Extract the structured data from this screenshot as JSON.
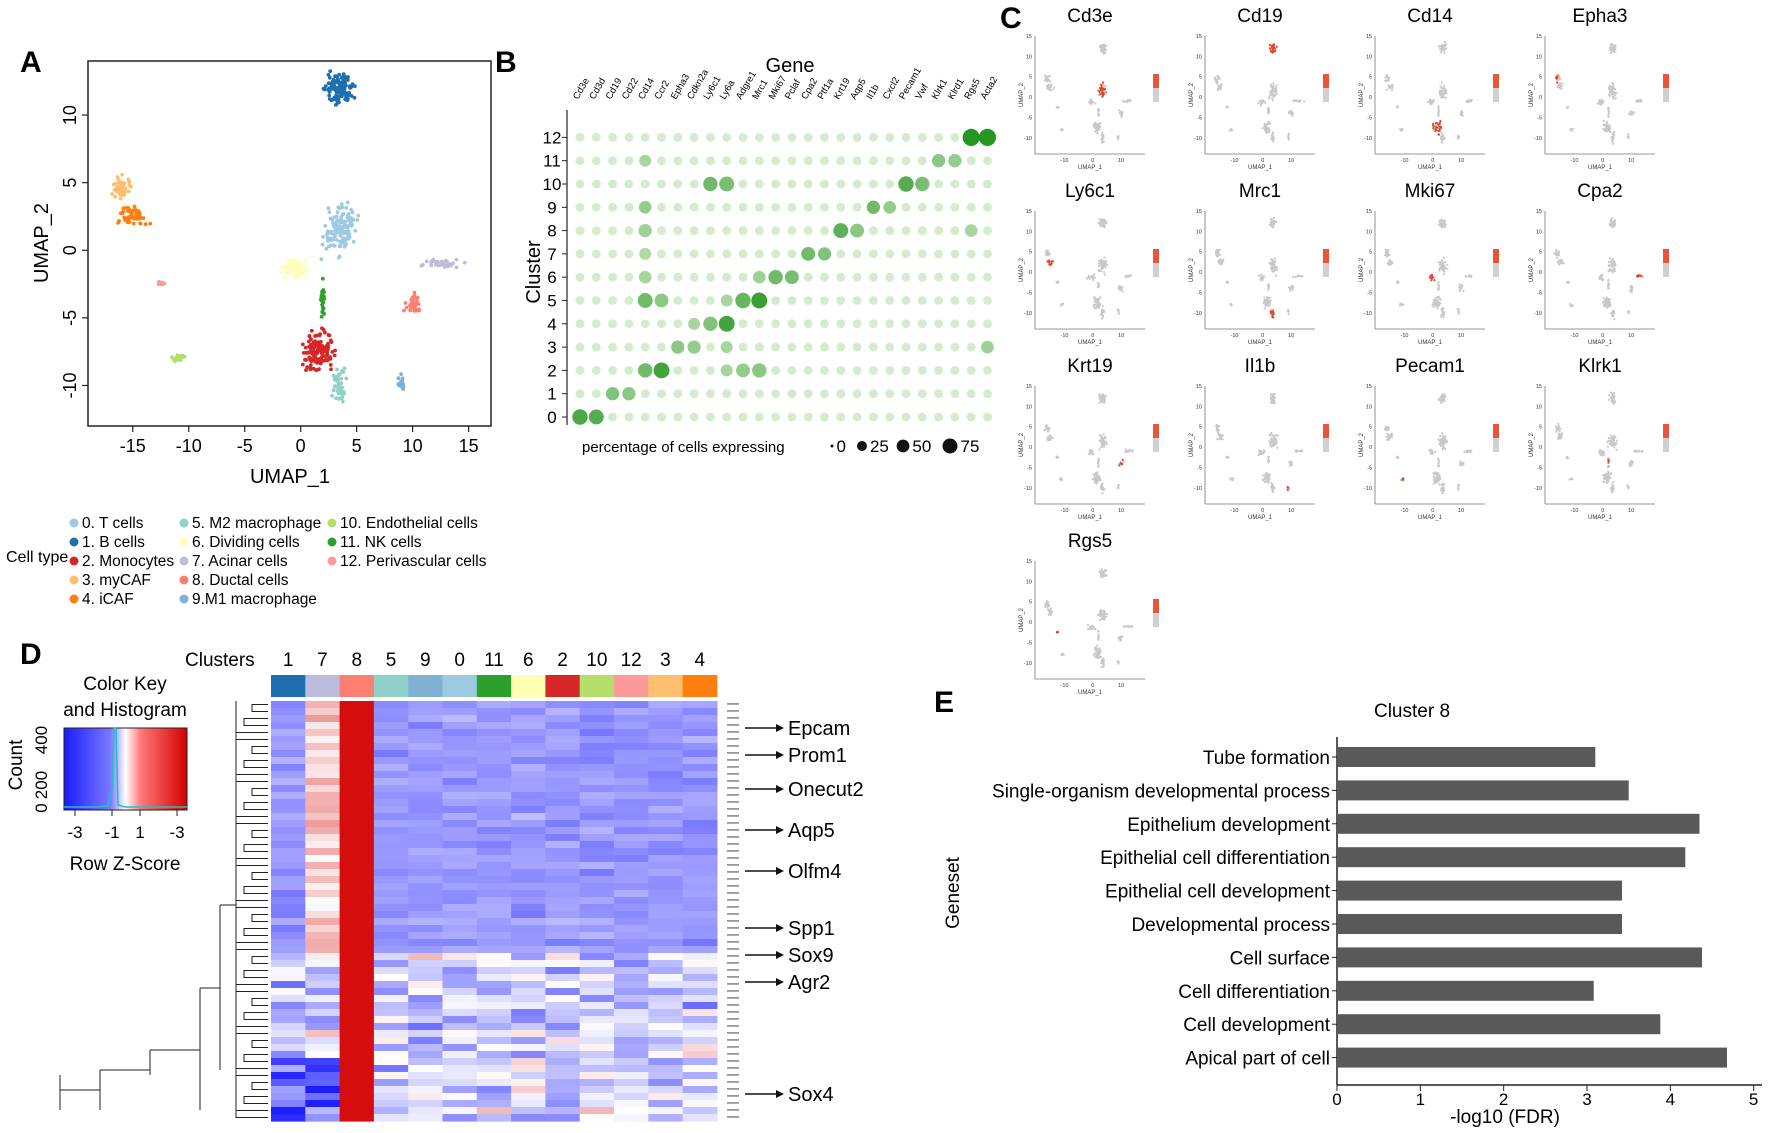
{
  "panel_letters": {
    "a": "A",
    "b": "B",
    "c": "C",
    "d": "D",
    "e": "E"
  },
  "colors": {
    "c0": "#9ecae1",
    "c1": "#1f6fb0",
    "c2": "#d62728",
    "c3": "#fdbf6f",
    "c4": "#ff7f0e",
    "c5": "#8fd1c7",
    "c6": "#ffffb3",
    "c7": "#bcbddc",
    "c8": "#fb8072",
    "c9": "#80b1d3",
    "c10": "#b3de69",
    "c11": "#2ca02c",
    "c12": "#fb9a99",
    "dot_green": "#3aa832",
    "bar_gray": "#595959",
    "heat_red": "#d40000",
    "heat_blue": "#1a1aff"
  },
  "chart_data": [
    {
      "panel": "A",
      "type": "scatter",
      "xlabel": "UMAP_1",
      "ylabel": "UMAP_2",
      "xlim": [
        -19,
        17
      ],
      "ylim": [
        -13,
        14
      ],
      "x_ticks": [
        "-15",
        "-10",
        "-5",
        "0",
        "5",
        "10",
        "15"
      ],
      "y_ticks": [
        "-10",
        "-5",
        "0",
        "5",
        "10"
      ],
      "legend_title": "Cell type",
      "legend": [
        "0. T cells",
        "1. B cells",
        "2. Monocytes",
        "3. myCAF",
        "4. iCAF",
        "5. M2 macrophage",
        "6. Dividing cells",
        "7. Acinar cells",
        "8. Ductal cells",
        "9.M1 macrophage",
        "10. Endothelial cells",
        "11. NK cells",
        "12. Perivascular cells"
      ],
      "clusters": [
        {
          "id": 0,
          "cx": 3.5,
          "cy": 1.5,
          "rx": 2,
          "ry": 2.5,
          "n": 130
        },
        {
          "id": 1,
          "cx": 3.5,
          "cy": 12,
          "rx": 1.7,
          "ry": 1.6,
          "n": 110
        },
        {
          "id": 2,
          "cx": 1.5,
          "cy": -7.5,
          "rx": 2,
          "ry": 2,
          "n": 130
        },
        {
          "id": 3,
          "cx": -16,
          "cy": 4.5,
          "rx": 1.3,
          "ry": 1.3,
          "n": 45
        },
        {
          "id": 4,
          "cx": -15,
          "cy": 2.5,
          "rx": 1.7,
          "ry": 1.2,
          "n": 55
        },
        {
          "id": 5,
          "cx": 3.5,
          "cy": -10,
          "rx": 0.9,
          "ry": 1.8,
          "n": 45
        },
        {
          "id": 6,
          "cx": -0.5,
          "cy": -1.3,
          "rx": 1.7,
          "ry": 1,
          "n": 45
        },
        {
          "id": 7,
          "cx": 12.5,
          "cy": -1,
          "rx": 2.5,
          "ry": 0.4,
          "n": 35
        },
        {
          "id": 8,
          "cx": 10,
          "cy": -4,
          "rx": 1.3,
          "ry": 1,
          "n": 35
        },
        {
          "id": 9,
          "cx": 9,
          "cy": -9.8,
          "rx": 0.4,
          "ry": 1,
          "n": 16
        },
        {
          "id": 10,
          "cx": -11,
          "cy": -8,
          "rx": 0.9,
          "ry": 0.5,
          "n": 18
        },
        {
          "id": 11,
          "cx": 2,
          "cy": -3.5,
          "rx": 0.3,
          "ry": 2,
          "n": 28
        },
        {
          "id": 12,
          "cx": -12.5,
          "cy": -2.5,
          "rx": 0.6,
          "ry": 0.3,
          "n": 10
        }
      ]
    },
    {
      "panel": "B",
      "type": "scatter",
      "title": "Gene",
      "xlabel": "percentage of cells expressing",
      "ylabel": "Cluster",
      "genes": [
        "Cd3e",
        "Cd3d",
        "Cd19",
        "Cd22",
        "Cd14",
        "Ccr2",
        "Epha3",
        "Cdkn2a",
        "Ly6c1",
        "Ly6a",
        "Adgre1",
        "Mrc1",
        "Mki67",
        "Pclaf",
        "Cpa2",
        "Ptf1a",
        "Krt19",
        "Aqp5",
        "Il1b",
        "Cxcl2",
        "Pecam1",
        "Vwf",
        "Klrk1",
        "Klrd1",
        "Rgs5",
        "Acta2"
      ],
      "clusters": [
        "0",
        "1",
        "2",
        "3",
        "4",
        "5",
        "6",
        "7",
        "8",
        "9",
        "10",
        "11",
        "12"
      ],
      "size_legend": [
        "0",
        "25",
        "50",
        "75"
      ],
      "highlights": [
        {
          "c": 0,
          "g": 0,
          "p": 55,
          "i": 0.8
        },
        {
          "c": 0,
          "g": 1,
          "p": 50,
          "i": 0.75
        },
        {
          "c": 1,
          "g": 2,
          "p": 35,
          "i": 0.5
        },
        {
          "c": 1,
          "g": 3,
          "p": 35,
          "i": 0.45
        },
        {
          "c": 2,
          "g": 4,
          "p": 45,
          "i": 0.6
        },
        {
          "c": 2,
          "g": 5,
          "p": 60,
          "i": 0.85
        },
        {
          "c": 2,
          "g": 10,
          "p": 40,
          "i": 0.4
        },
        {
          "c": 2,
          "g": 11,
          "p": 45,
          "i": 0.45
        },
        {
          "c": 2,
          "g": 9,
          "p": 25,
          "i": 0.3
        },
        {
          "c": 3,
          "g": 6,
          "p": 35,
          "i": 0.45
        },
        {
          "c": 3,
          "g": 7,
          "p": 35,
          "i": 0.4
        },
        {
          "c": 3,
          "g": 9,
          "p": 25,
          "i": 0.3
        },
        {
          "c": 3,
          "g": 25,
          "p": 30,
          "i": 0.35
        },
        {
          "c": 4,
          "g": 8,
          "p": 45,
          "i": 0.5
        },
        {
          "c": 4,
          "g": 9,
          "p": 60,
          "i": 0.85
        },
        {
          "c": 4,
          "g": 7,
          "p": 25,
          "i": 0.3
        },
        {
          "c": 5,
          "g": 4,
          "p": 50,
          "i": 0.6
        },
        {
          "c": 5,
          "g": 5,
          "p": 40,
          "i": 0.45
        },
        {
          "c": 5,
          "g": 10,
          "p": 55,
          "i": 0.65
        },
        {
          "c": 5,
          "g": 11,
          "p": 60,
          "i": 0.9
        },
        {
          "c": 5,
          "g": 9,
          "p": 25,
          "i": 0.3
        },
        {
          "c": 6,
          "g": 12,
          "p": 45,
          "i": 0.6
        },
        {
          "c": 6,
          "g": 13,
          "p": 40,
          "i": 0.55
        },
        {
          "c": 6,
          "g": 11,
          "p": 30,
          "i": 0.35
        },
        {
          "c": 6,
          "g": 4,
          "p": 30,
          "i": 0.3
        },
        {
          "c": 7,
          "g": 14,
          "p": 40,
          "i": 0.6
        },
        {
          "c": 7,
          "g": 15,
          "p": 35,
          "i": 0.5
        },
        {
          "c": 7,
          "g": 4,
          "p": 25,
          "i": 0.25
        },
        {
          "c": 8,
          "g": 16,
          "p": 50,
          "i": 0.7
        },
        {
          "c": 8,
          "g": 17,
          "p": 40,
          "i": 0.45
        },
        {
          "c": 8,
          "g": 4,
          "p": 35,
          "i": 0.35
        },
        {
          "c": 8,
          "g": 24,
          "p": 30,
          "i": 0.3
        },
        {
          "c": 9,
          "g": 18,
          "p": 35,
          "i": 0.6
        },
        {
          "c": 9,
          "g": 19,
          "p": 30,
          "i": 0.4
        },
        {
          "c": 9,
          "g": 4,
          "p": 30,
          "i": 0.4
        },
        {
          "c": 10,
          "g": 20,
          "p": 55,
          "i": 0.75
        },
        {
          "c": 10,
          "g": 21,
          "p": 45,
          "i": 0.55
        },
        {
          "c": 10,
          "g": 8,
          "p": 45,
          "i": 0.6
        },
        {
          "c": 10,
          "g": 9,
          "p": 50,
          "i": 0.55
        },
        {
          "c": 11,
          "g": 22,
          "p": 35,
          "i": 0.45
        },
        {
          "c": 11,
          "g": 23,
          "p": 35,
          "i": 0.4
        },
        {
          "c": 11,
          "g": 4,
          "p": 25,
          "i": 0.3
        },
        {
          "c": 12,
          "g": 24,
          "p": 75,
          "i": 1.0
        },
        {
          "c": 12,
          "g": 25,
          "p": 75,
          "i": 1.0
        }
      ]
    },
    {
      "panel": "C",
      "type": "scatter",
      "xlabel": "UMAP_1",
      "ylabel": "UMAP_2",
      "genes": [
        "Cd3e",
        "Cd19",
        "Cd14",
        "Epha3",
        "Ly6c1",
        "Mrc1",
        "Mki67",
        "Cpa2",
        "Krt19",
        "Il1b",
        "Pecam1",
        "Klrk1",
        "Rgs5"
      ],
      "highlight_cluster": [
        0,
        1,
        2,
        3,
        4,
        5,
        6,
        7,
        8,
        9,
        10,
        11,
        12
      ],
      "x_ticks": [
        "-10",
        "0",
        "10"
      ],
      "y_ticks": [
        "15",
        "10",
        "5",
        "0",
        "-5",
        "-10"
      ]
    },
    {
      "panel": "D",
      "type": "heatmap",
      "column_header": "Clusters",
      "columns": [
        "1",
        "7",
        "8",
        "5",
        "9",
        "0",
        "11",
        "6",
        "2",
        "10",
        "12",
        "3",
        "4"
      ],
      "rows": 60,
      "color_key_title": [
        "Color Key",
        "and Histogram"
      ],
      "color_key_xlabel": "Row Z-Score",
      "color_key_ylabel": "Count",
      "color_key_x_ticks": [
        "-3",
        "-1",
        "1",
        "-3"
      ],
      "color_key_y_ticks": [
        "0",
        "200",
        "400"
      ],
      "gene_labels": [
        "Epcam",
        "Prom1",
        "Onecut2",
        "Aqp5",
        "Olfm4",
        "Spp1",
        "Sox9",
        "Agr2",
        "Sox4"
      ]
    },
    {
      "panel": "E",
      "type": "bar",
      "title": "Cluster 8",
      "xlabel": "-log10 (FDR)",
      "ylabel": "Geneset",
      "categories": [
        "Tube formation",
        "Single-organism developmental process",
        "Epithelium development",
        "Epithelial cell differentiation",
        "Epithelial cell development",
        "Developmental process",
        "Cell surface",
        "Cell differentiation",
        "Cell development",
        "Apical part of cell"
      ],
      "values": [
        3.1,
        3.5,
        4.35,
        4.18,
        3.42,
        3.42,
        4.38,
        3.08,
        3.88,
        4.68
      ],
      "xlim": [
        0,
        5.1
      ],
      "x_ticks": [
        "0",
        "1",
        "2",
        "3",
        "4",
        "5"
      ]
    }
  ]
}
